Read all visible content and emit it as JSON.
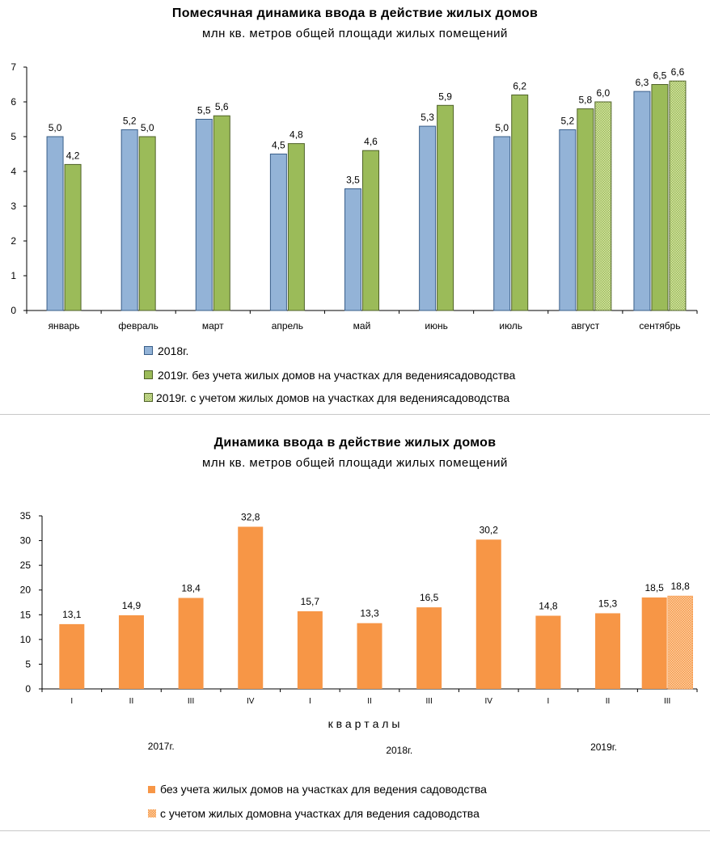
{
  "colors": {
    "blue": "#93b3d7",
    "green": "#9bbb59",
    "orange": "#f79646",
    "axis": "#000000"
  },
  "chart_data": [
    {
      "type": "bar",
      "title": "Помесячная динамика ввода в действие жилых домов",
      "subtitle": "млн кв. метров  общей площади жилых помещений",
      "categories": [
        "январь",
        "февраль",
        "март",
        "апрель",
        "май",
        "июнь",
        "июль",
        "август",
        "сентябрь"
      ],
      "ylim": [
        0,
        7
      ],
      "yticks": [
        "0",
        "1",
        "2",
        "3",
        "4",
        "5",
        "6",
        "7"
      ],
      "grid": false,
      "legend_position": "bottom",
      "series": [
        {
          "name": "2018г.",
          "values": [
            5.0,
            5.2,
            5.5,
            4.5,
            3.5,
            5.3,
            5.0,
            5.2,
            6.3
          ],
          "labels": [
            "5,0",
            "5,2",
            "5,5",
            "4,5",
            "3,5",
            "5,3",
            "5,0",
            "5,2",
            "6,3"
          ]
        },
        {
          "name": "2019г. без учета жилых домов на участках для ведениясадоводства",
          "values": [
            4.2,
            5.0,
            5.6,
            4.8,
            4.6,
            5.9,
            6.2,
            5.8,
            6.5
          ],
          "labels": [
            "4,2",
            "5,0",
            "5,6",
            "4,8",
            "4,6",
            "5,9",
            "6,2",
            "5,8",
            "6,5"
          ]
        },
        {
          "name": "2019г. с учетом жилых домов на участках для ведениясадоводства",
          "values": [
            null,
            null,
            null,
            null,
            null,
            null,
            null,
            6.0,
            6.6
          ],
          "labels": [
            null,
            null,
            null,
            null,
            null,
            null,
            null,
            "6,0",
            "6,6"
          ]
        }
      ]
    },
    {
      "type": "bar",
      "title": "Динамика ввода в действие жилых домов",
      "subtitle": "млн кв. метров  общей площади жилых помещений",
      "categories": [
        "I",
        "II",
        "III",
        "IV",
        "I",
        "II",
        "III",
        "IV",
        "I",
        "II",
        "III"
      ],
      "xlabel": "к в а р т а л ы",
      "year_labels": [
        {
          "text": "2017г.",
          "group": [
            0,
            3
          ]
        },
        {
          "text": "2018г.",
          "group": [
            4,
            7
          ]
        },
        {
          "text": "2019г.",
          "group": [
            8,
            10
          ]
        }
      ],
      "ylim": [
        0,
        35
      ],
      "yticks": [
        "0",
        "5",
        "10",
        "15",
        "20",
        "25",
        "30",
        "35"
      ],
      "grid": false,
      "legend_position": "bottom",
      "series": [
        {
          "name": "без учета жилых домов на участках для ведения садоводства",
          "values": [
            13.1,
            14.9,
            18.4,
            32.8,
            15.7,
            13.3,
            16.5,
            30.2,
            14.8,
            15.3,
            18.5
          ],
          "labels": [
            "13,1",
            "14,9",
            "18,4",
            "32,8",
            "15,7",
            "13,3",
            "16,5",
            "30,2",
            "14,8",
            "15,3",
            "18,5"
          ]
        },
        {
          "name": "с учетом жилых домовна участках для ведения садоводства",
          "values": [
            null,
            null,
            null,
            null,
            null,
            null,
            null,
            null,
            null,
            null,
            18.8
          ],
          "labels": [
            null,
            null,
            null,
            null,
            null,
            null,
            null,
            null,
            null,
            null,
            "18,8"
          ]
        }
      ]
    }
  ]
}
